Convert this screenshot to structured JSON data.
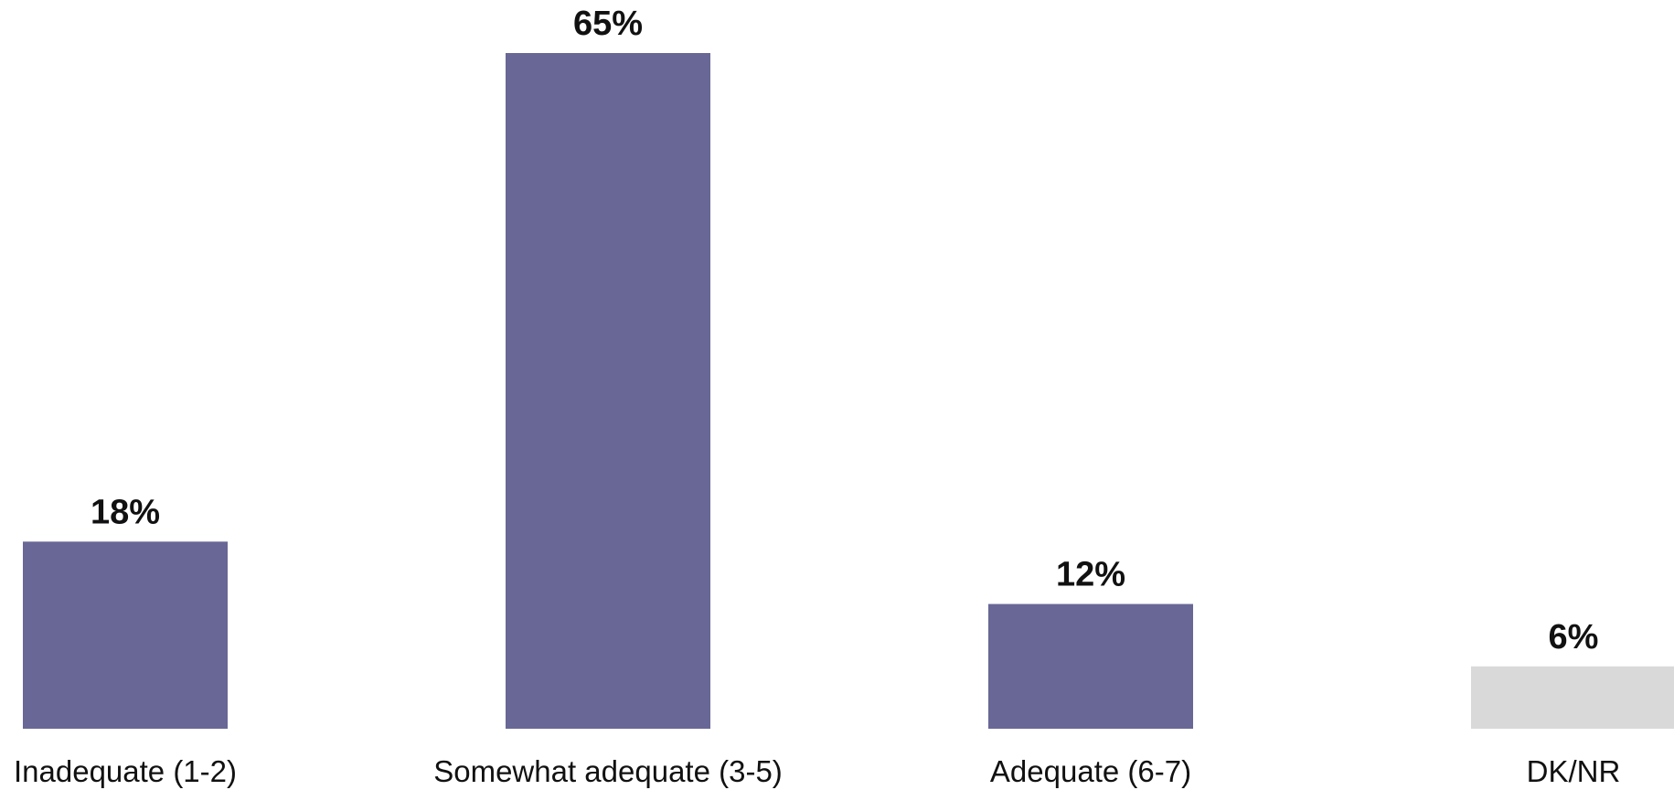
{
  "chart_data": {
    "type": "bar",
    "categories": [
      "Inadequate (1-2)",
      "Somewhat adequate (3-5)",
      "Adequate (6-7)",
      "DK/NR"
    ],
    "values": [
      18,
      65,
      12,
      6
    ],
    "value_labels": [
      "18%",
      "65%",
      "12%",
      "6%"
    ],
    "unit": "%",
    "ylim": [
      0,
      65
    ],
    "grid": false,
    "legend": "none",
    "colors": [
      "#686796",
      "#686796",
      "#686796",
      "#d9d9d9"
    ]
  }
}
